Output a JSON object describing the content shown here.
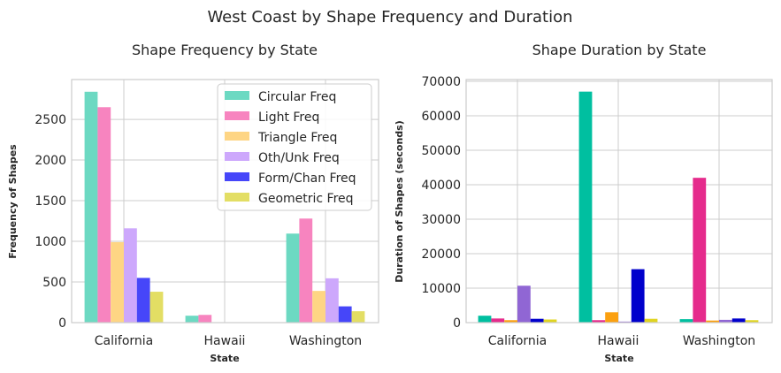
{
  "suptitle": "West Coast by Shape Frequency and Duration",
  "chart_data": [
    {
      "type": "bar",
      "title": "Shape Frequency by State",
      "xlabel": "State",
      "ylabel": "Frequency of Shapes",
      "categories": [
        "California",
        "Hawaii",
        "Washington"
      ],
      "ylim": [
        0,
        2990
      ],
      "yticks": [
        0,
        500,
        1000,
        1500,
        2000,
        2500
      ],
      "grid": true,
      "legend": "top-right",
      "series": [
        {
          "name": "Circular Freq",
          "color": "#6cd9c2",
          "values": [
            2840,
            85,
            1095
          ]
        },
        {
          "name": "Light Freq",
          "color": "#f784bf",
          "values": [
            2650,
            95,
            1280
          ]
        },
        {
          "name": "Triangle Freq",
          "color": "#fed584",
          "values": [
            990,
            5,
            390
          ]
        },
        {
          "name": "Oth/Unk Freq",
          "color": "#cda8fc",
          "values": [
            1160,
            5,
            545
          ]
        },
        {
          "name": "Form/Chan Freq",
          "color": "#4646f9",
          "values": [
            550,
            3,
            200
          ]
        },
        {
          "name": "Geometric Freq",
          "color": "#e3de64",
          "values": [
            380,
            5,
            140
          ]
        }
      ]
    },
    {
      "type": "bar",
      "title": "Shape Duration by State",
      "xlabel": "State",
      "ylabel": "Duration of Shapes (seconds)",
      "categories": [
        "California",
        "Hawaii",
        "Washington"
      ],
      "ylim": [
        0,
        70500
      ],
      "yticks": [
        0,
        10000,
        20000,
        30000,
        40000,
        50000,
        60000,
        70000
      ],
      "grid": true,
      "series": [
        {
          "color": "#00bfa0",
          "values": [
            2000,
            67000,
            1000
          ]
        },
        {
          "color": "#e52b8c",
          "values": [
            1200,
            700,
            42000
          ]
        },
        {
          "color": "#fba010",
          "values": [
            700,
            3000,
            600
          ]
        },
        {
          "color": "#9066d4",
          "values": [
            10700,
            300,
            800
          ]
        },
        {
          "color": "#0000cc",
          "values": [
            1100,
            15500,
            1200
          ]
        },
        {
          "color": "#e0d420",
          "values": [
            900,
            1100,
            700
          ]
        }
      ]
    }
  ]
}
